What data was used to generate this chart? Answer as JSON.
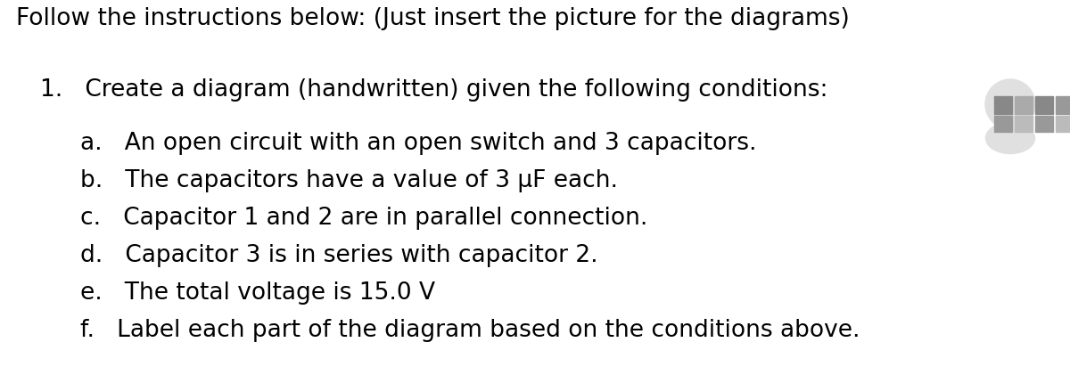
{
  "bg_color": "#ffffff",
  "header_text": "Follow the instructions below: (Just insert the picture for the diagrams)",
  "header_fontsize": 19,
  "item1_text": "1.   Create a diagram (handwritten) given the following conditions:",
  "item1_fontsize": 19,
  "sub_fontsize": 19,
  "sub_items": [
    {
      "label": "a.",
      "text": "An open circuit with an open switch and 3 capacitors."
    },
    {
      "label": "b.",
      "text": "The capacitors have a value of 3 μF each."
    },
    {
      "label": "c.",
      "text": "Capacitor 1 and 2 are in parallel connection."
    },
    {
      "label": "d.",
      "text": "Capacitor 3 is in series with capacitor 2."
    },
    {
      "label": "e.",
      "text": "The total voltage is 15.0 V"
    },
    {
      "label": "f.",
      "text": "Label each part of the diagram based on the conditions above."
    }
  ],
  "font_family": "DejaVu Sans",
  "text_color": "#000000"
}
